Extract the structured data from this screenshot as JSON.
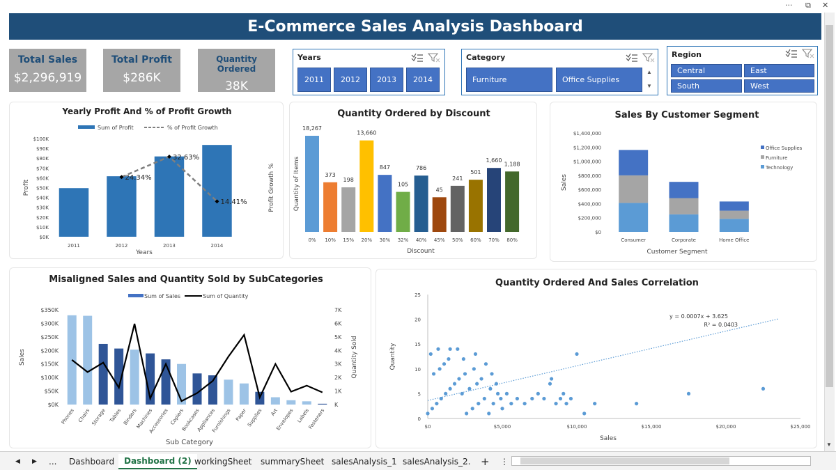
{
  "window": {
    "more": "···",
    "restore": "⧉",
    "close": "✕"
  },
  "title": "E-Commerce Sales Analysis Dashboard",
  "kpis": [
    {
      "label": "Total Sales",
      "value": "$2,296,919"
    },
    {
      "label": "Total Profit",
      "value": "$286K"
    },
    {
      "label": "Quantity Ordered",
      "value": "38K"
    }
  ],
  "slicers": {
    "years": {
      "title": "Years",
      "items": [
        "2011",
        "2012",
        "2013",
        "2014"
      ]
    },
    "category": {
      "title": "Category",
      "items": [
        "Furniture",
        "Office Supplies"
      ]
    },
    "region": {
      "title": "Region",
      "items": [
        "Central",
        "East",
        "South",
        "West"
      ]
    },
    "icons": {
      "multiselect": "multiselect-icon",
      "clear": "clear-filter-icon",
      "up": "▲",
      "down": "▼"
    }
  },
  "tabs": {
    "nav_prev": "◀",
    "nav_next": "▶",
    "ellipsis": "...",
    "ellipsis2": "...",
    "add": "+",
    "more": "⋮",
    "items": [
      "Dashboard",
      "Dashboard (2)",
      "workingSheet",
      "summarySheet",
      "salesAnalysis_1",
      "salesAnalysis_2"
    ],
    "active_index": 1
  },
  "chart_data": [
    {
      "type": "bar",
      "title": "Yearly Profit And % of Profit Growth",
      "categories": [
        "2011",
        "2012",
        "2013",
        "2014"
      ],
      "series": [
        {
          "name": "Sum of Profit",
          "values": [
            49500,
            61600,
            81800,
            93500
          ],
          "color": "#2e75b6"
        },
        {
          "name": "% of Profit Growth",
          "type": "line",
          "values": [
            null,
            24.34,
            32.63,
            14.41
          ],
          "labels": [
            "",
            "24.34%",
            "32.63%",
            "14.41%"
          ],
          "color": "#7f7f7f"
        }
      ],
      "xlabel": "Years",
      "ylabel": "Profit",
      "y2label": "Profit Growth %",
      "ylim": [
        0,
        100000
      ],
      "yticks": [
        "$0K",
        "$10K",
        "$20K",
        "$30K",
        "$40K",
        "$50K",
        "$60K",
        "$70K",
        "$80K",
        "$90K",
        "$100K"
      ],
      "y2lim": [
        0,
        40
      ],
      "legend": "top"
    },
    {
      "type": "bar",
      "title": "Quantity Ordered by Discount",
      "categories": [
        "0%",
        "10%",
        "15%",
        "20%",
        "30%",
        "32%",
        "40%",
        "45%",
        "50%",
        "60%",
        "70%",
        "80%"
      ],
      "values": [
        18267,
        373,
        198,
        13660,
        847,
        105,
        786,
        45,
        241,
        501,
        1660,
        1188
      ],
      "labels": [
        "18,267",
        "373",
        "198",
        "13,660",
        "847",
        "105",
        "786",
        "45",
        "241",
        "501",
        "1,660",
        "1,188"
      ],
      "colors": [
        "#5b9bd5",
        "#ed7d31",
        "#a5a5a5",
        "#ffc000",
        "#4472c4",
        "#70ad47",
        "#255e91",
        "#9e480e",
        "#636363",
        "#997300",
        "#264478",
        "#43682b"
      ],
      "xlabel": "Discount",
      "ylabel": "Quantity of Items",
      "scale": "nonlinear"
    },
    {
      "type": "bar",
      "stacked": true,
      "title": "Sales By Customer Segment",
      "categories": [
        "Consumer",
        "Corporate",
        "Home Office"
      ],
      "series": [
        {
          "name": "Technology",
          "values": [
            410000,
            248000,
            185000
          ],
          "color": "#5b9bd5"
        },
        {
          "name": "Furniture",
          "values": [
            390000,
            230000,
            115000
          ],
          "color": "#a5a5a5"
        },
        {
          "name": "Office Supplies",
          "values": [
            360000,
            230000,
            130000
          ],
          "color": "#4472c4"
        }
      ],
      "legend_order": [
        "Office Supplies",
        "Furniture",
        "Technology"
      ],
      "xlabel": "Customer Segment",
      "ylabel": "Sales",
      "ylim": [
        0,
        1400000
      ],
      "yticks": [
        "$0",
        "$200,000",
        "$400,000",
        "$600,000",
        "$800,000",
        "$1,000,000",
        "$1,200,000",
        "$1,400,000"
      ],
      "legend": "right"
    },
    {
      "type": "bar",
      "title": "Misaligned Sales and Quantity Sold by SubCategories",
      "categories": [
        "Phones",
        "Chairs",
        "Storage",
        "Tables",
        "Binders",
        "Machines",
        "Accessories",
        "Copiers",
        "Bookcases",
        "Appliances",
        "Furnishings",
        "Paper",
        "Supplies",
        "Art",
        "Envelopes",
        "Labels",
        "Fasteners"
      ],
      "series": [
        {
          "name": "Sum of Sales",
          "values": [
            330000,
            328000,
            224000,
            207000,
            203000,
            189000,
            167000,
            150000,
            115000,
            108000,
            92000,
            78000,
            47000,
            27000,
            16000,
            12000,
            3000
          ]
        },
        {
          "name": "Sum of Quantity",
          "type": "line",
          "values": [
            3300,
            2400,
            3100,
            1250,
            5970,
            450,
            3000,
            250,
            850,
            1750,
            3550,
            5150,
            530,
            3000,
            950,
            1400,
            900
          ],
          "color": "#000000"
        }
      ],
      "bar_colors": [
        "#9dc3e6",
        "#9dc3e6",
        "#2f5597",
        "#2f5597",
        "#9dc3e6",
        "#2f5597",
        "#2f5597",
        "#9dc3e6",
        "#2f5597",
        "#2f5597",
        "#9dc3e6",
        "#9dc3e6",
        "#2f5597",
        "#9dc3e6",
        "#9dc3e6",
        "#9dc3e6",
        "#2f5597"
      ],
      "xlabel": "Sub Category",
      "ylabel": "Sales",
      "y2label": "Quantity Sold",
      "ylim": [
        0,
        350000
      ],
      "yticks": [
        "$0K",
        "$50K",
        "$100K",
        "$150K",
        "$200K",
        "$250K",
        "$300K",
        "$350K"
      ],
      "y2lim": [
        0,
        7000
      ],
      "y2ticks": [
        "K",
        "1K",
        "2K",
        "3K",
        "4K",
        "5K",
        "6K",
        "7K"
      ],
      "legend": "top"
    },
    {
      "type": "scatter",
      "title": "Quantity Ordered And Sales Correlation",
      "xlabel": "Sales",
      "ylabel": "Quantity",
      "xlim": [
        0,
        25000
      ],
      "ylim": [
        0,
        25
      ],
      "xticks": [
        "$0",
        "$5,000",
        "$10,000",
        "$15,000",
        "$20,000",
        "$25,000"
      ],
      "yticks": [
        "0",
        "5",
        "10",
        "15",
        "20",
        "25"
      ],
      "trendline": {
        "equation": "y = 0.0007x + 3.625",
        "r2": "R² = 0.0403",
        "slope": 0.0007,
        "intercept": 3.625
      },
      "points": [
        [
          0,
          1
        ],
        [
          300,
          2
        ],
        [
          600,
          3
        ],
        [
          900,
          4
        ],
        [
          1200,
          5
        ],
        [
          1500,
          6
        ],
        [
          1800,
          7
        ],
        [
          2100,
          8
        ],
        [
          400,
          9
        ],
        [
          800,
          10
        ],
        [
          1100,
          11
        ],
        [
          1400,
          12
        ],
        [
          200,
          13
        ],
        [
          700,
          14
        ],
        [
          1500,
          14
        ],
        [
          2000,
          14
        ],
        [
          2600,
          1
        ],
        [
          3000,
          2
        ],
        [
          3400,
          3
        ],
        [
          3800,
          4
        ],
        [
          2300,
          5
        ],
        [
          2800,
          6
        ],
        [
          3300,
          7
        ],
        [
          3600,
          8
        ],
        [
          2500,
          9
        ],
        [
          3100,
          10
        ],
        [
          3900,
          11
        ],
        [
          2400,
          12
        ],
        [
          3200,
          13
        ],
        [
          4100,
          1
        ],
        [
          4400,
          3
        ],
        [
          4700,
          5
        ],
        [
          4200,
          6
        ],
        [
          4600,
          7
        ],
        [
          4900,
          4
        ],
        [
          4300,
          9
        ],
        [
          5000,
          2
        ],
        [
          5300,
          5
        ],
        [
          5600,
          3
        ],
        [
          6000,
          4
        ],
        [
          6500,
          3
        ],
        [
          7000,
          4
        ],
        [
          7400,
          5
        ],
        [
          7800,
          4
        ],
        [
          8200,
          7
        ],
        [
          8300,
          8
        ],
        [
          8600,
          3
        ],
        [
          8900,
          4
        ],
        [
          9300,
          3
        ],
        [
          9600,
          4
        ],
        [
          9100,
          5
        ],
        [
          10000,
          13
        ],
        [
          10500,
          1
        ],
        [
          11200,
          3
        ],
        [
          14000,
          3
        ],
        [
          17500,
          5
        ],
        [
          22500,
          6
        ]
      ],
      "color": "#5b9bd5"
    }
  ]
}
